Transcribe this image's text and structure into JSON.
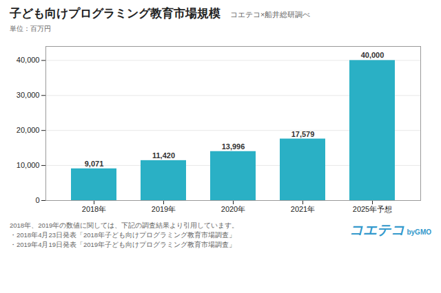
{
  "chart_data": {
    "type": "bar",
    "title": "子ども向けプログラミング教育市場規模",
    "subtitle": "コエテコ×船井総研調べ",
    "ylabel": "単位：百万円",
    "categories": [
      "2018年",
      "2019年",
      "2020年",
      "2021年",
      "2025年予想"
    ],
    "values": [
      9071,
      11420,
      13996,
      17579,
      40000
    ],
    "value_labels": [
      "9,071",
      "11,420",
      "13,996",
      "17,579",
      "40,000"
    ],
    "data_labels": true,
    "color": "#2ab0c5",
    "ylim": [
      0,
      44000
    ],
    "yticks": [
      0,
      {
        "value": 10000,
        "label": "10,000"
      },
      {
        "value": 20000,
        "label": "20,000"
      },
      {
        "value": 30000,
        "label": "30,000"
      },
      {
        "value": 40000,
        "label": "40,000"
      }
    ],
    "grid": true,
    "footnotes": [
      "2018年、2019年の数値に関しては、下記の調査結果より引用しています。",
      "・2018年4月23日発表「2018年子ども向けプログラミング教育市場調査」",
      "・2019年4月19日発表「2019年子ども向けプログラミング教育市場調査」"
    ],
    "annotations": [
      "コエテコ",
      "byGMO"
    ]
  }
}
